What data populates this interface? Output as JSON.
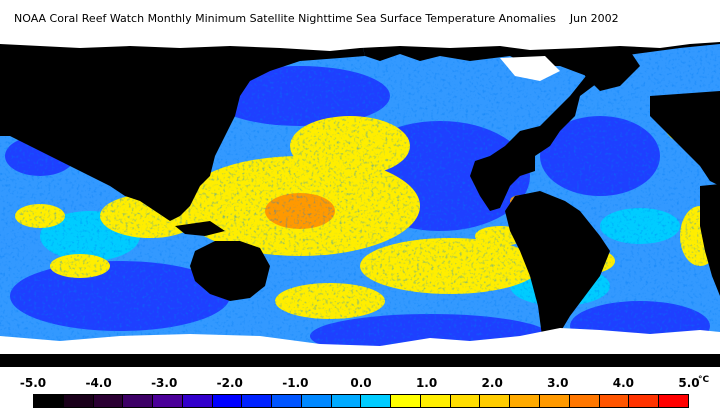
{
  "title": "NOAA Coral Reef Watch Monthly Minimum Satellite Nighttime Sea Surface Temperature Anomalies",
  "date": "Jun 2002",
  "legend": {
    "ticks": [
      "-5.0",
      "-4.0",
      "-3.0",
      "-2.0",
      "-1.0",
      "0.0",
      "1.0",
      "2.0",
      "3.0",
      "4.0",
      "5.0"
    ],
    "unit": "°C",
    "colors": [
      "#000000",
      "#1a001a",
      "#2b0033",
      "#3d0066",
      "#4b0099",
      "#3300cc",
      "#0000ff",
      "#0022ff",
      "#0055ff",
      "#0088ff",
      "#00aaff",
      "#00ccff",
      "#ffff00",
      "#ffee00",
      "#ffdd00",
      "#ffcc00",
      "#ffaa00",
      "#ff9900",
      "#ff7700",
      "#ff5500",
      "#ff3300",
      "#ff0000"
    ]
  },
  "map_colors": {
    "land": "#000000",
    "ice": "#ffffff",
    "ocean_base": "#3399ff",
    "cool": "#1e40ff",
    "neutral": "#00ccff",
    "warm": "#ffee00",
    "hot": "#ff9900",
    "extreme": "#ff3300"
  }
}
